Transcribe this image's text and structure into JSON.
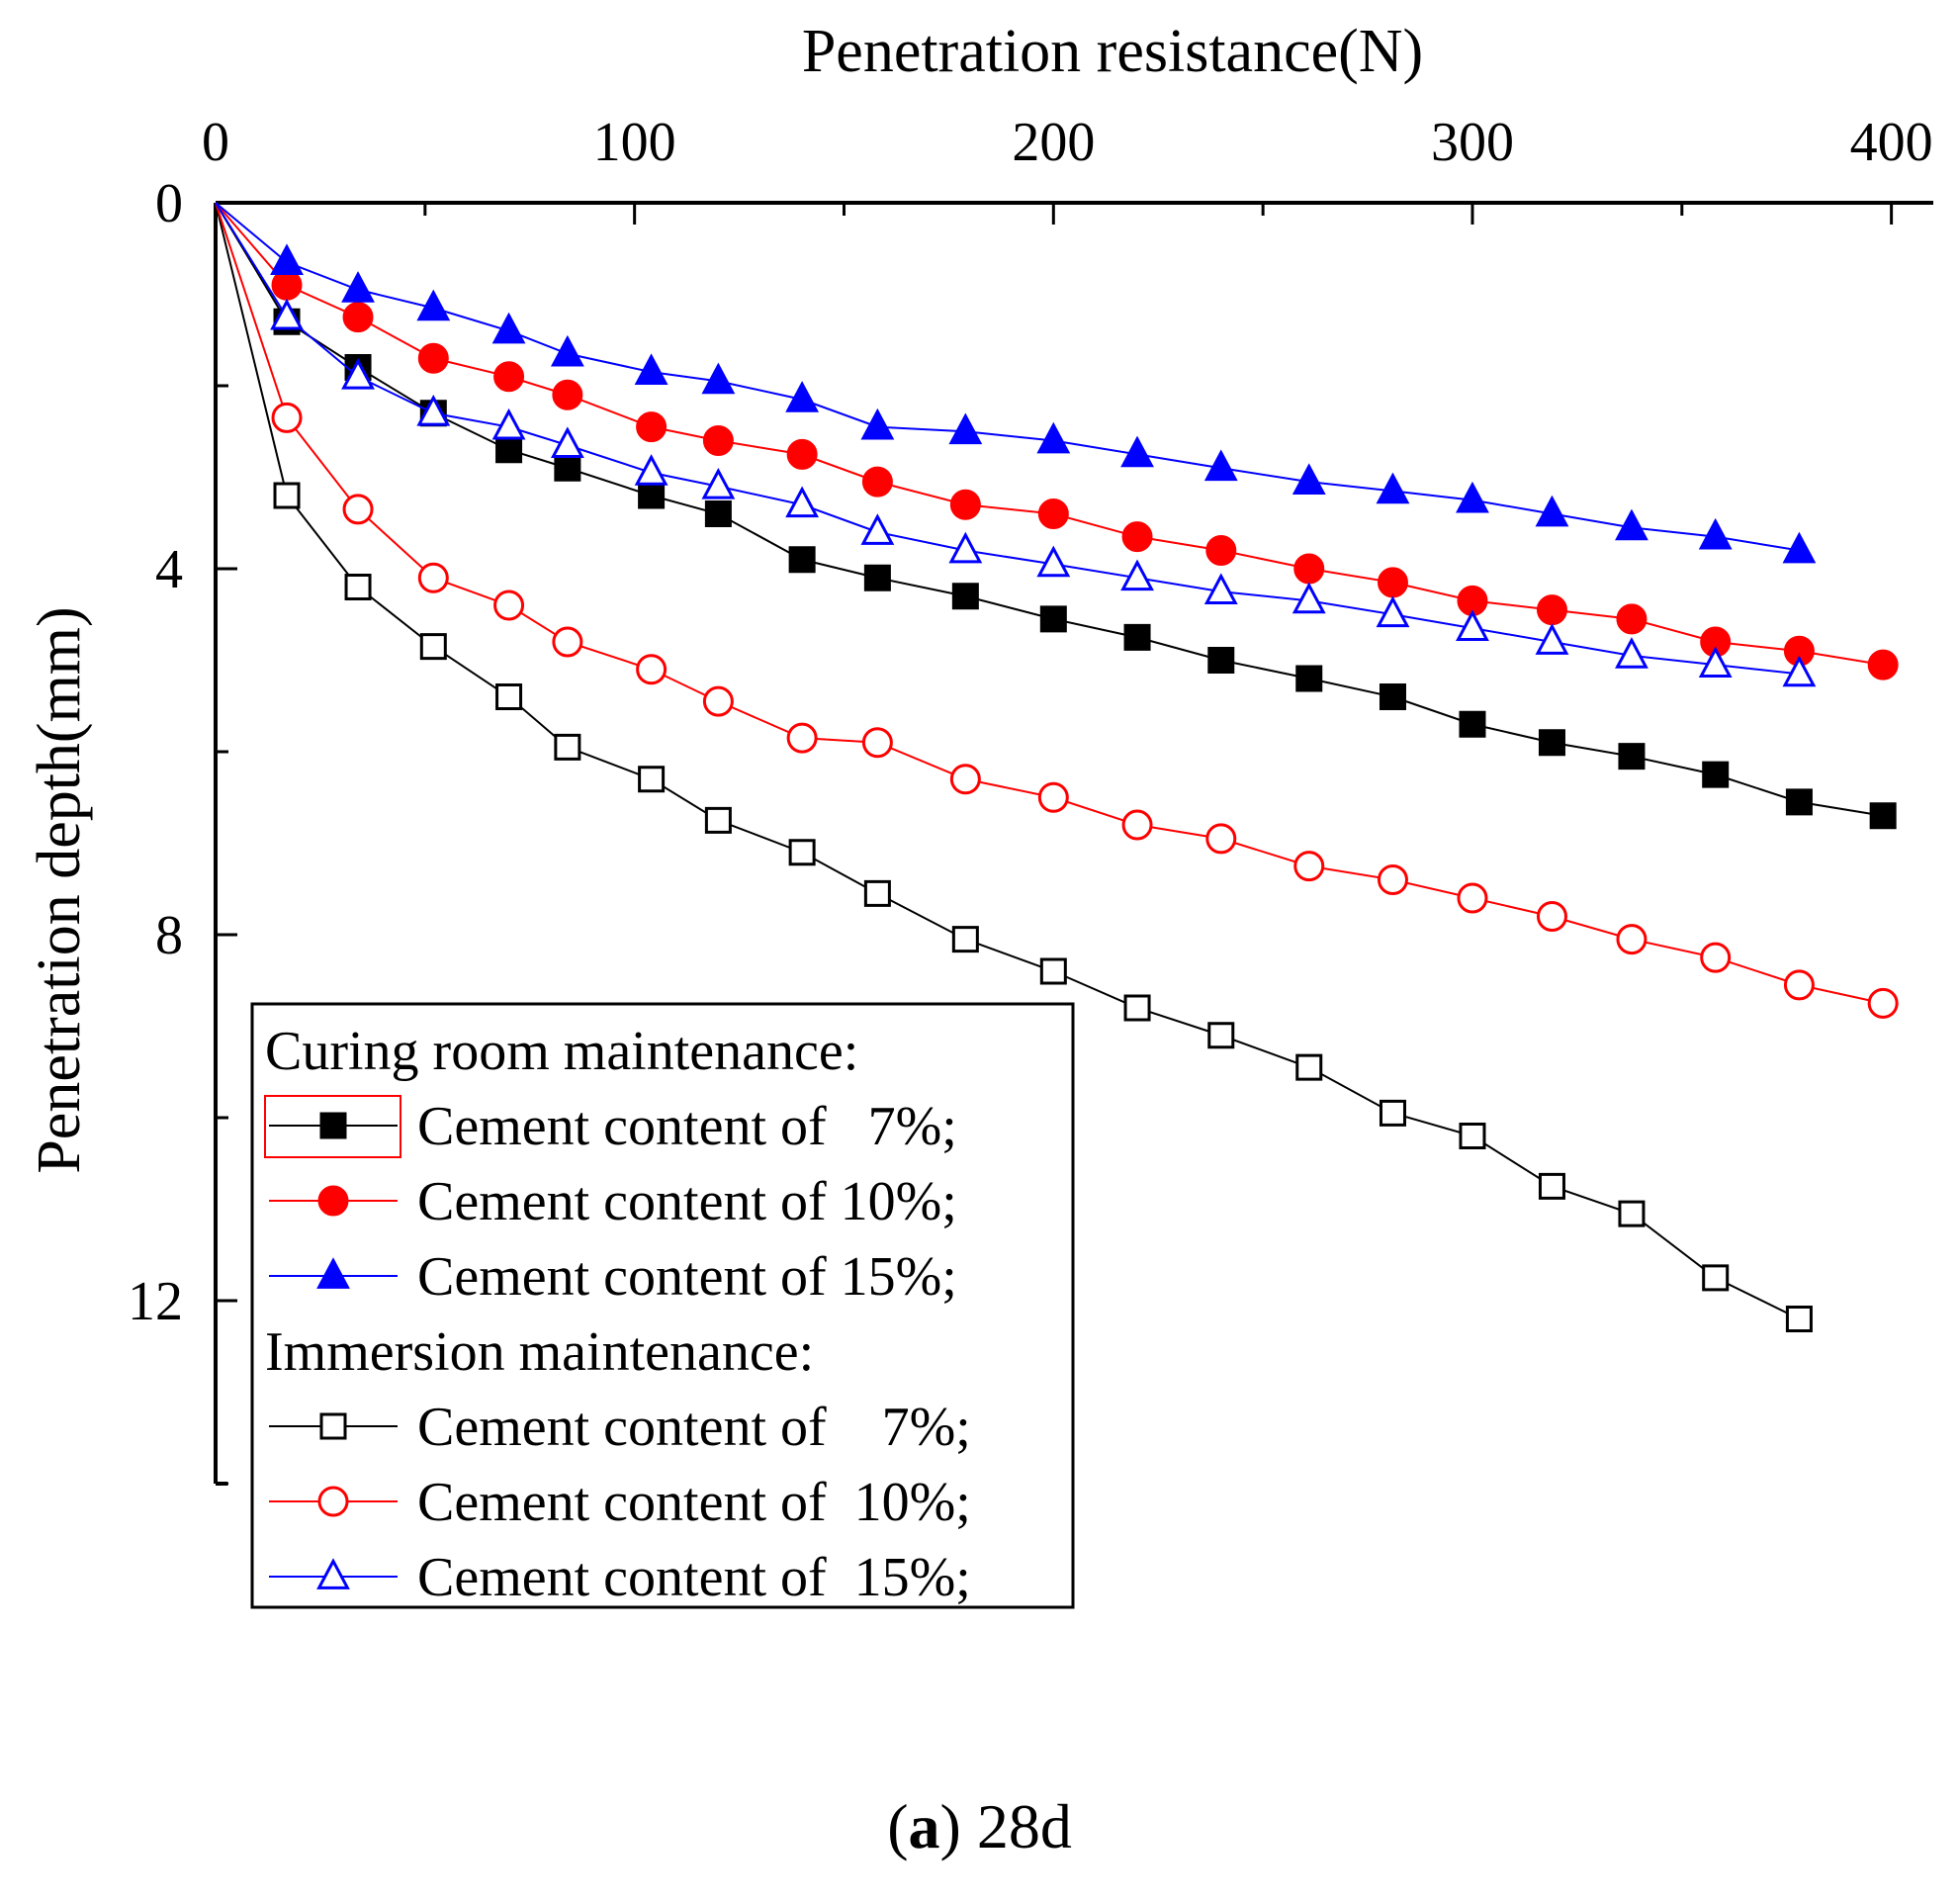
{
  "chart_data": {
    "type": "line",
    "title": "",
    "xlabel": "Penetration resistance(N)",
    "ylabel": "Penetration depth(mm)",
    "x_axis_position": "top",
    "y_inverted": true,
    "xlim": [
      0,
      410
    ],
    "ylim": [
      0,
      14
    ],
    "x_ticks": [
      0,
      100,
      200,
      300,
      400
    ],
    "x_tick_labels": [
      "0",
      "100",
      "200",
      "300",
      "400"
    ],
    "y_ticks": [
      0,
      4,
      8,
      12
    ],
    "y_tick_labels": [
      "0",
      "4",
      "8",
      "12"
    ],
    "legend_position": "bottom-left",
    "legend_groups": [
      {
        "heading": "Curing room maintenance:",
        "series": [
          0,
          1,
          2
        ]
      },
      {
        "heading": "Immersion maintenance:",
        "series": [
          3,
          4,
          5
        ]
      }
    ],
    "series": [
      {
        "name": "Cement content of 7%;",
        "legend_label": "Cement content of   7%;",
        "color": "#000000",
        "marker": "square",
        "filled": true,
        "x": [
          0,
          17,
          34,
          52,
          70,
          84,
          104,
          120,
          140,
          158,
          179,
          200,
          220,
          240,
          261,
          281,
          300,
          319,
          338,
          358,
          378,
          398
        ],
        "y": [
          0,
          1.3,
          1.8,
          2.3,
          2.7,
          2.9,
          3.2,
          3.4,
          3.9,
          4.1,
          4.3,
          4.55,
          4.75,
          5.0,
          5.2,
          5.4,
          5.7,
          5.9,
          6.05,
          6.25,
          6.55,
          6.7
        ]
      },
      {
        "name": "Cement content of 10%;",
        "legend_label": "Cement content of 10%;",
        "color": "#ff0000",
        "marker": "circle",
        "filled": true,
        "x": [
          0,
          17,
          34,
          52,
          70,
          84,
          104,
          120,
          140,
          158,
          179,
          200,
          220,
          240,
          261,
          281,
          300,
          319,
          338,
          358,
          378,
          398
        ],
        "y": [
          0,
          0.9,
          1.25,
          1.7,
          1.9,
          2.1,
          2.45,
          2.6,
          2.75,
          3.05,
          3.3,
          3.4,
          3.65,
          3.8,
          4.0,
          4.15,
          4.35,
          4.45,
          4.55,
          4.8,
          4.9,
          5.05
        ]
      },
      {
        "name": "Cement content of 15%;",
        "legend_label": "Cement content of 15%;",
        "color": "#0000ff",
        "marker": "triangle",
        "filled": true,
        "x": [
          0,
          17,
          34,
          52,
          70,
          84,
          104,
          120,
          140,
          158,
          179,
          200,
          220,
          240,
          261,
          281,
          300,
          319,
          338,
          358,
          378
        ],
        "y": [
          0,
          0.65,
          0.95,
          1.15,
          1.4,
          1.65,
          1.85,
          1.95,
          2.15,
          2.45,
          2.5,
          2.6,
          2.75,
          2.9,
          3.05,
          3.15,
          3.25,
          3.4,
          3.55,
          3.65,
          3.8
        ]
      },
      {
        "name": "Cement content of 7%;",
        "legend_label": "Cement content of    7%;",
        "color": "#000000",
        "marker": "square",
        "filled": false,
        "x": [
          0,
          17,
          34,
          52,
          70,
          84,
          104,
          120,
          140,
          158,
          179,
          200,
          220,
          240,
          261,
          281,
          300,
          319,
          338,
          358,
          378
        ],
        "y": [
          0,
          3.2,
          4.2,
          4.85,
          5.4,
          5.95,
          6.3,
          6.75,
          7.1,
          7.55,
          8.05,
          8.4,
          8.8,
          9.1,
          9.45,
          9.95,
          10.2,
          10.75,
          11.05,
          11.75,
          12.2
        ]
      },
      {
        "name": "Cement content of 10%;",
        "legend_label": "Cement content of  10%;",
        "color": "#ff0000",
        "marker": "circle",
        "filled": false,
        "x": [
          0,
          17,
          34,
          52,
          70,
          84,
          104,
          120,
          140,
          158,
          179,
          200,
          220,
          240,
          261,
          281,
          300,
          319,
          338,
          358,
          378,
          398
        ],
        "y": [
          0,
          2.35,
          3.35,
          4.1,
          4.4,
          4.8,
          5.1,
          5.45,
          5.85,
          5.9,
          6.3,
          6.5,
          6.8,
          6.95,
          7.25,
          7.4,
          7.6,
          7.8,
          8.05,
          8.25,
          8.55,
          8.75
        ]
      },
      {
        "name": "Cement content of 15%;",
        "legend_label": "Cement content of  15%;",
        "color": "#0000ff",
        "marker": "triangle",
        "filled": false,
        "x": [
          0,
          17,
          34,
          52,
          70,
          84,
          104,
          120,
          140,
          158,
          179,
          200,
          220,
          240,
          261,
          281,
          300,
          319,
          338,
          358,
          378
        ],
        "y": [
          0,
          1.25,
          1.9,
          2.3,
          2.45,
          2.65,
          2.95,
          3.1,
          3.3,
          3.6,
          3.8,
          3.95,
          4.1,
          4.25,
          4.35,
          4.5,
          4.65,
          4.8,
          4.95,
          5.05,
          5.15
        ]
      }
    ]
  },
  "caption": {
    "label": "a",
    "suffix": " 28d",
    "open": "(",
    "close": ")"
  }
}
